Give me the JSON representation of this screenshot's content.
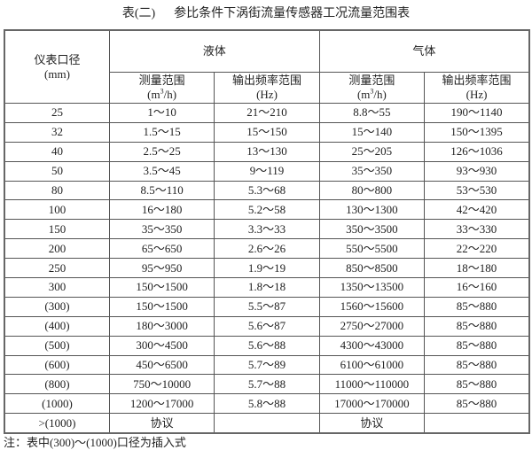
{
  "title": "表(二)      参比条件下涡街流量传感器工况流量范围表",
  "header": {
    "diameter": "仪表口径",
    "diameter_unit": "(mm)",
    "liquid": "液体",
    "gas": "气体",
    "measure_range": "测量范围",
    "measure_unit_pre": "(m",
    "measure_unit_sup": "3",
    "measure_unit_post": "/h)",
    "freq_range": "输出频率范围",
    "freq_unit": "(Hz)"
  },
  "rows": [
    [
      "25",
      "1～10",
      "21～210",
      "8.8～55",
      "190～1140"
    ],
    [
      "32",
      "1.5～15",
      "15～150",
      "15～140",
      "150～1395"
    ],
    [
      "40",
      "2.5～25",
      "13～130",
      "25～205",
      "126～1036"
    ],
    [
      "50",
      "3.5～45",
      "9～119",
      "35～350",
      "93～930"
    ],
    [
      "80",
      "8.5～110",
      "5.3～68",
      "80～800",
      "53～530"
    ],
    [
      "100",
      "16～180",
      "5.2～58",
      "130～1300",
      "42～420"
    ],
    [
      "150",
      "35～350",
      "3.3～33",
      "350～3500",
      "33～330"
    ],
    [
      "200",
      "65～650",
      "2.6～26",
      "550～5500",
      "22～220"
    ],
    [
      "250",
      "95～950",
      "1.9～19",
      "850～8500",
      "18～180"
    ],
    [
      "300",
      "150～1500",
      "1.8～18",
      "1350～13500",
      "16～160"
    ],
    [
      "(300)",
      "150～1500",
      "5.5～87",
      "1560～15600",
      "85～880"
    ],
    [
      "(400)",
      "180～3000",
      "5.6～87",
      "2750～27000",
      "85～880"
    ],
    [
      "(500)",
      "300～4500",
      "5.6～88",
      "4300～43000",
      "85～880"
    ],
    [
      "(600)",
      "450～6500",
      "5.7～89",
      "6100～61000",
      "85～880"
    ],
    [
      "(800)",
      "750～10000",
      "5.7～88",
      "11000～110000",
      "85～880"
    ],
    [
      "(1000)",
      "1200～17000",
      "5.8～88",
      "17000～170000",
      "85～880"
    ],
    [
      ">(1000)",
      "协议",
      "",
      "协议",
      ""
    ]
  ],
  "note": "注：表中(300)～(1000)口径为插入式"
}
